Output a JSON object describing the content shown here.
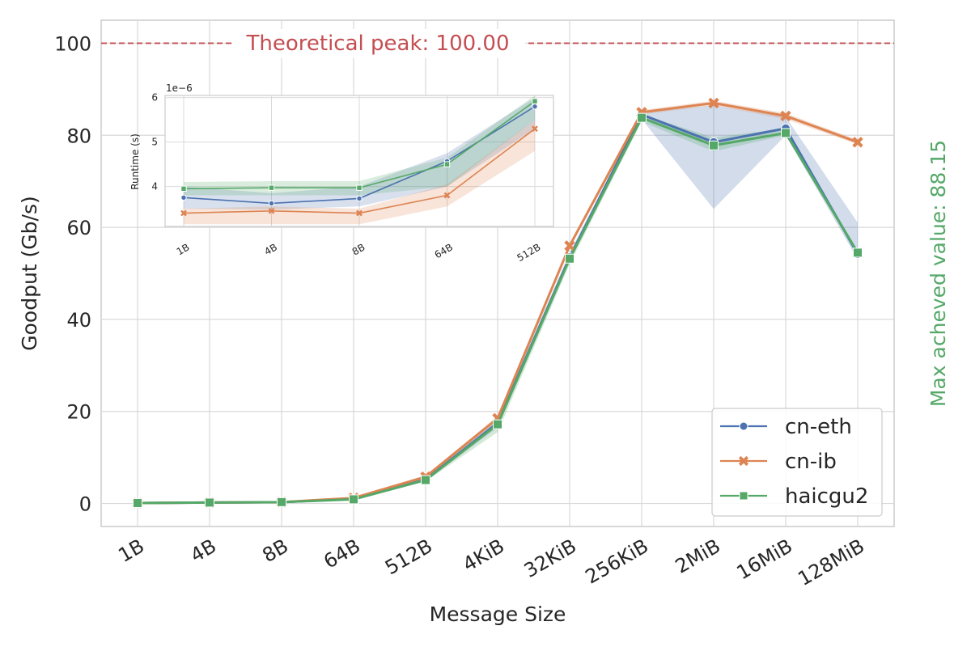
{
  "chart_data": [
    {
      "type": "line",
      "role": "main",
      "xlabel": "Message Size",
      "ylabel": "Goodput (Gb/s)",
      "categories": [
        "1B",
        "4B",
        "8B",
        "64B",
        "512B",
        "4KiB",
        "32KiB",
        "256KiB",
        "2MiB",
        "16MiB",
        "128MiB"
      ],
      "ylim": [
        -5,
        105
      ],
      "yticks": [
        0,
        20,
        40,
        60,
        80,
        100
      ],
      "grid": true,
      "series": [
        {
          "name": "cn-eth",
          "marker": "circle",
          "color": "#4c72b0",
          "values": [
            0.1,
            0.2,
            0.3,
            1.0,
            5.2,
            17.5,
            53.5,
            84.5,
            78.5,
            81.5,
            54.2
          ],
          "lower": [
            0.0,
            0.1,
            0.2,
            0.8,
            4.9,
            16.5,
            52.5,
            83.5,
            64.0,
            80.0,
            53.0
          ],
          "upper": [
            0.2,
            0.3,
            0.4,
            1.2,
            5.5,
            18.5,
            54.5,
            85.0,
            86.5,
            84.0,
            61.0
          ]
        },
        {
          "name": "cn-ib",
          "marker": "x",
          "color": "#dd8452",
          "values": [
            0.1,
            0.2,
            0.3,
            1.2,
            5.8,
            18.5,
            56.0,
            85.0,
            87.0,
            84.2,
            78.5
          ],
          "lower": [
            0.0,
            0.1,
            0.2,
            1.0,
            5.5,
            18.0,
            55.5,
            84.5,
            86.5,
            83.5,
            78.0
          ],
          "upper": [
            0.2,
            0.3,
            0.4,
            1.4,
            6.1,
            19.0,
            56.5,
            85.5,
            87.5,
            84.8,
            79.0
          ]
        },
        {
          "name": "haicgu2",
          "marker": "square",
          "color": "#55a868",
          "values": [
            0.1,
            0.2,
            0.3,
            0.9,
            5.1,
            17.2,
            53.2,
            83.8,
            77.8,
            80.5,
            54.5
          ],
          "lower": [
            0.0,
            0.1,
            0.2,
            0.7,
            4.8,
            15.5,
            52.0,
            83.0,
            76.5,
            80.0,
            54.0
          ],
          "upper": [
            0.2,
            0.3,
            0.4,
            1.1,
            5.4,
            18.0,
            54.0,
            84.5,
            79.5,
            81.5,
            55.0
          ]
        }
      ],
      "annotations": {
        "peak_value": 100,
        "peak_label": "Theoretical peak: 100.00",
        "peak_color": "#c44e52",
        "max_label": "Max acheved value: 88.15",
        "max_color": "#55a868"
      },
      "legend": {
        "placement": "lower-right",
        "entries": [
          "cn-eth",
          "cn-ib",
          "haicgu2"
        ]
      }
    },
    {
      "type": "line",
      "role": "inset",
      "ylabel": "Runtime (s)",
      "offset_label": "1e−6",
      "categories": [
        "1B",
        "4B",
        "8B",
        "64B",
        "512B"
      ],
      "ylim": [
        3.1,
        6.05
      ],
      "yticks": [
        4,
        5,
        6
      ],
      "ytick_labels": [
        "4",
        "5",
        "6"
      ],
      "grid": true,
      "series": [
        {
          "name": "cn-eth",
          "color": "#4c72b0",
          "values": [
            3.75,
            3.62,
            3.73,
            4.57,
            5.8
          ],
          "lower": [
            3.5,
            3.48,
            3.55,
            4.0,
            5.3
          ],
          "upper": [
            4.0,
            3.85,
            4.0,
            4.75,
            6.0
          ]
        },
        {
          "name": "cn-ib",
          "color": "#dd8452",
          "values": [
            3.4,
            3.45,
            3.4,
            3.8,
            5.3
          ],
          "lower": [
            3.15,
            3.15,
            3.15,
            3.55,
            4.8
          ],
          "upper": [
            3.5,
            3.55,
            3.5,
            4.05,
            5.5
          ]
        },
        {
          "name": "haicgu2",
          "color": "#55a868",
          "values": [
            3.95,
            3.97,
            3.97,
            4.5,
            5.92
          ],
          "lower": [
            3.8,
            3.8,
            3.8,
            4.0,
            5.5
          ],
          "upper": [
            4.1,
            4.12,
            4.12,
            4.65,
            6.05
          ]
        }
      ]
    }
  ]
}
